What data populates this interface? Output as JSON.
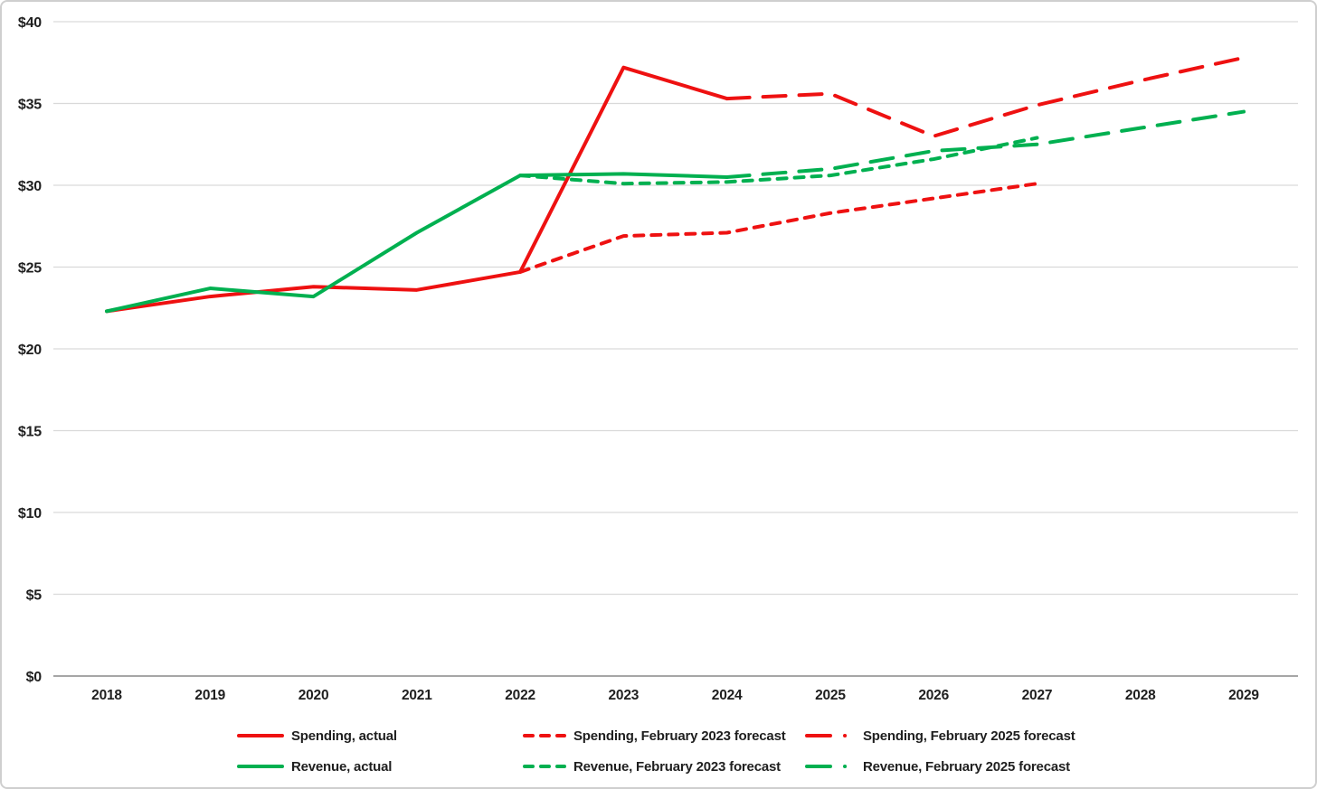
{
  "chart_data": {
    "type": "line",
    "title": "",
    "xlabel": "",
    "ylabel": "",
    "x_categories": [
      2018,
      2019,
      2020,
      2021,
      2022,
      2023,
      2024,
      2025,
      2026,
      2027,
      2028,
      2029
    ],
    "ylim": [
      0,
      40
    ],
    "y_tick_values": [
      0,
      5,
      10,
      15,
      20,
      25,
      30,
      35,
      40
    ],
    "y_tick_labels": [
      "$0",
      "$5",
      "$10",
      "$15",
      "$20",
      "$25",
      "$30",
      "$35",
      "$40"
    ],
    "grid": "horizontal",
    "legend_position": "bottom",
    "series": [
      {
        "name": "Spending, actual",
        "color": "#ee1111",
        "line_style": "solid",
        "x": [
          2018,
          2019,
          2020,
          2021,
          2022,
          2023,
          2024
        ],
        "y": [
          22.3,
          23.2,
          23.8,
          23.6,
          24.7,
          37.2,
          35.3
        ]
      },
      {
        "name": "Spending, February 2023 forecast",
        "color": "#ee1111",
        "line_style": "short-dash",
        "x": [
          2022,
          2023,
          2024,
          2025,
          2026,
          2027
        ],
        "y": [
          24.7,
          26.9,
          27.1,
          28.3,
          29.2,
          30.1
        ]
      },
      {
        "name": "Spending, February 2025 forecast",
        "color": "#ee1111",
        "line_style": "long-dash",
        "x": [
          2024,
          2025,
          2026,
          2027,
          2028,
          2029
        ],
        "y": [
          35.3,
          35.6,
          33.0,
          34.9,
          36.4,
          37.8
        ]
      },
      {
        "name": "Revenue, actual",
        "color": "#00b050",
        "line_style": "solid",
        "x": [
          2018,
          2019,
          2020,
          2021,
          2022,
          2023,
          2024
        ],
        "y": [
          22.3,
          23.7,
          23.2,
          27.1,
          30.6,
          30.7,
          30.5
        ]
      },
      {
        "name": "Revenue, February 2023 forecast",
        "color": "#00b050",
        "line_style": "short-dash",
        "x": [
          2022,
          2023,
          2024,
          2025,
          2026,
          2027
        ],
        "y": [
          30.6,
          30.1,
          30.2,
          30.6,
          31.6,
          32.9
        ]
      },
      {
        "name": "Revenue, February 2025 forecast",
        "color": "#00b050",
        "line_style": "long-dash",
        "x": [
          2024,
          2025,
          2026,
          2027,
          2028,
          2029
        ],
        "y": [
          30.5,
          31.0,
          32.1,
          32.5,
          33.5,
          34.5
        ]
      }
    ],
    "legend_rows": [
      [
        0,
        1,
        2
      ],
      [
        3,
        4,
        5
      ]
    ]
  },
  "colors": {
    "spending_red": "#ee1111",
    "revenue_green": "#00b050",
    "gridline": "#d9d9d9",
    "axis_line": "#a6a6a6",
    "text": "#1f1f1f"
  }
}
